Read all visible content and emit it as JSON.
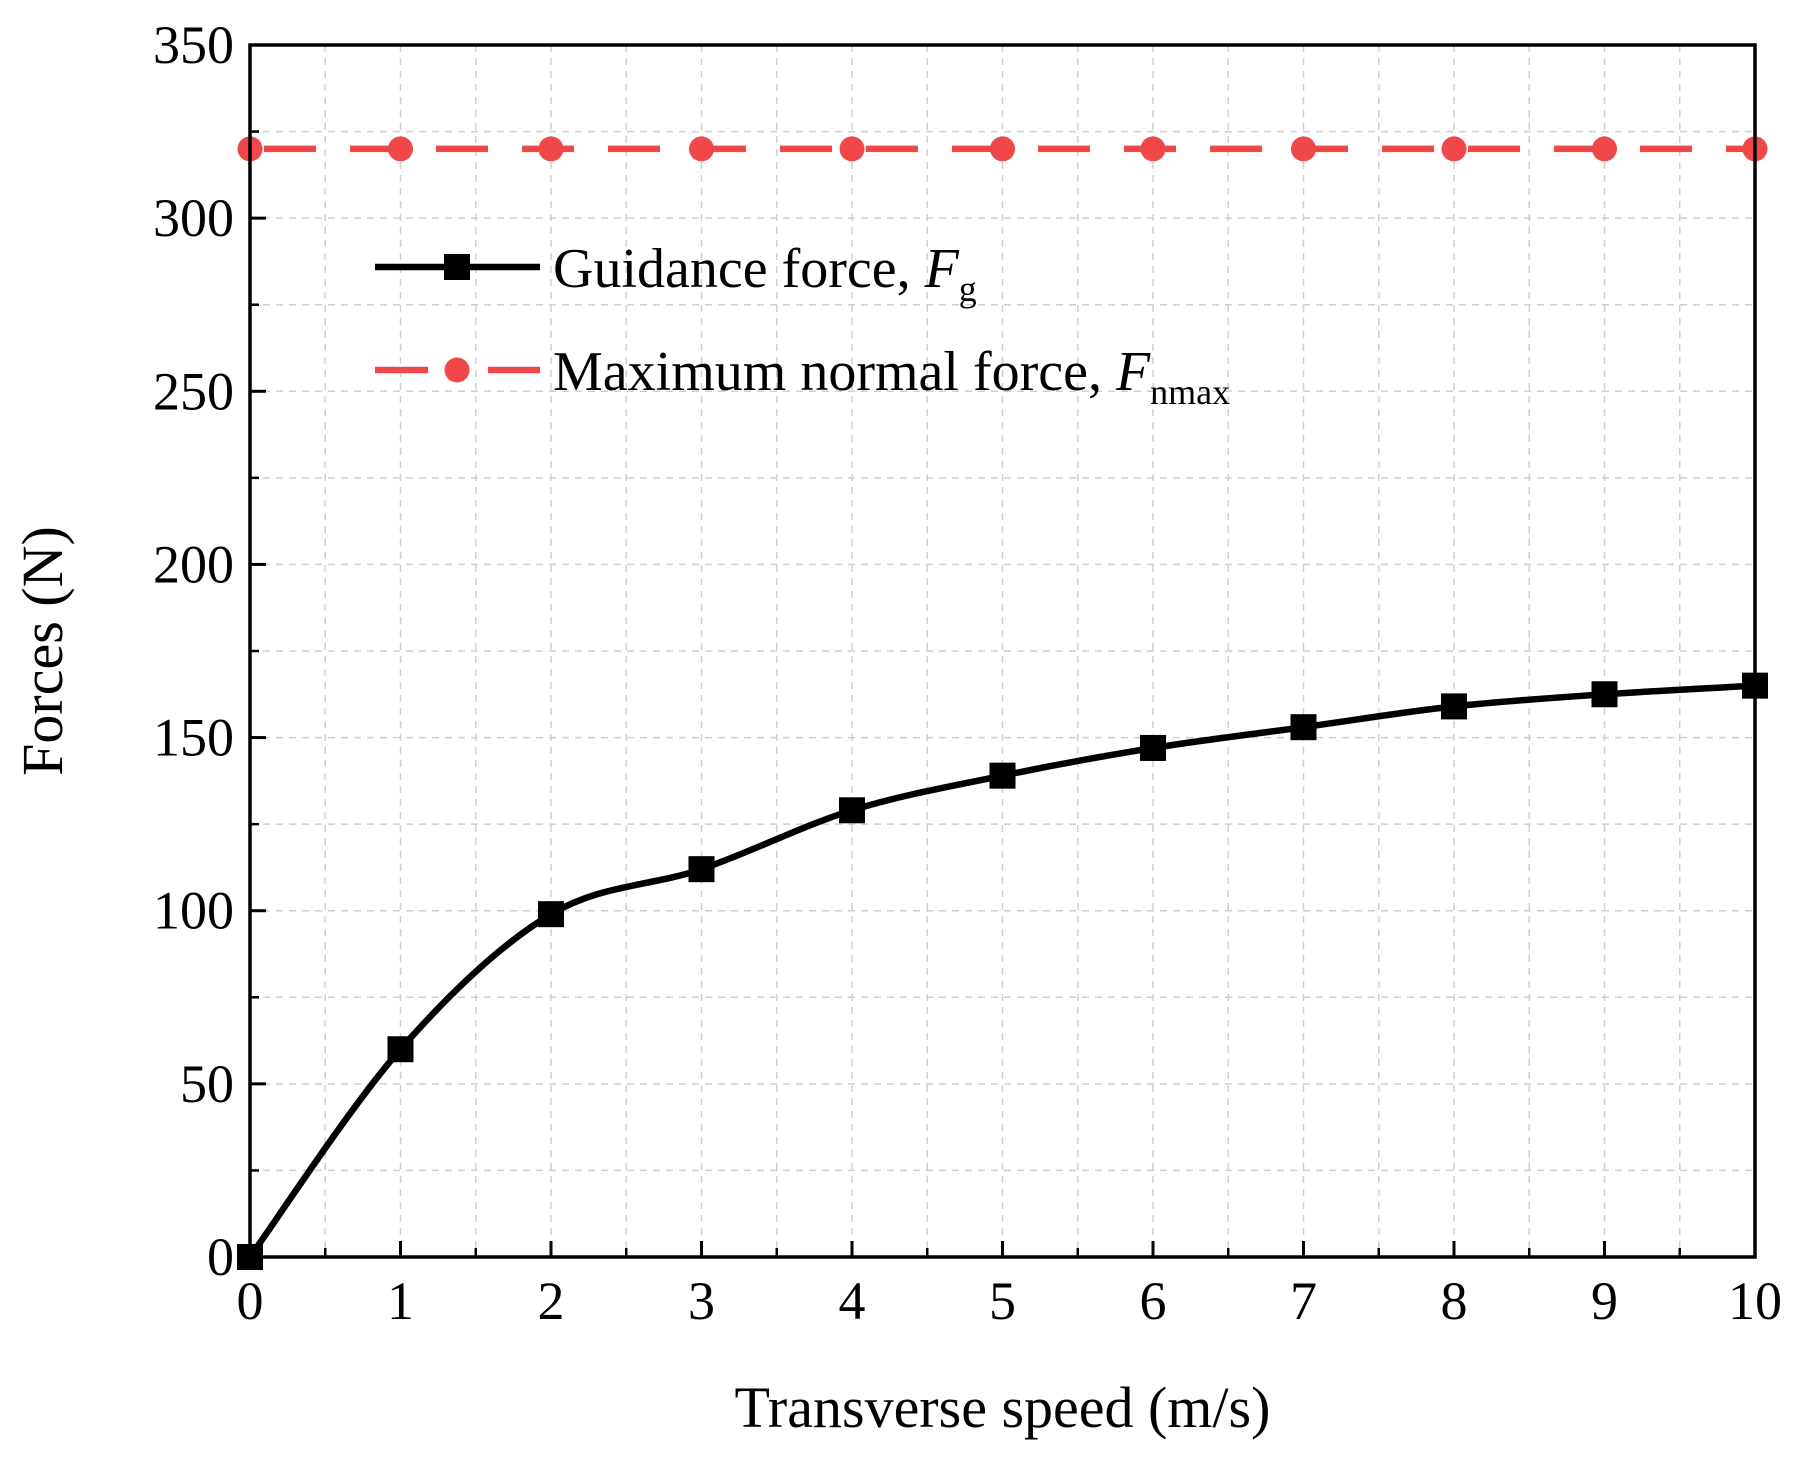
{
  "chart_data": {
    "type": "line",
    "title": "",
    "xlabel": "Transverse speed (m/s)",
    "ylabel": "Forces (N)",
    "xlim": [
      0,
      10
    ],
    "ylim": [
      0,
      350
    ],
    "xticks": [
      0,
      1,
      2,
      3,
      4,
      5,
      6,
      7,
      8,
      9,
      10
    ],
    "yticks": [
      0,
      50,
      100,
      150,
      200,
      250,
      300,
      350
    ],
    "xtick_labels": [
      "0",
      "1",
      "2",
      "3",
      "4",
      "5",
      "6",
      "7",
      "8",
      "9",
      "10"
    ],
    "ytick_labels": [
      "0",
      "50",
      "100",
      "150",
      "200",
      "250",
      "300",
      "350"
    ],
    "grid": true,
    "legend_position": "upper-left",
    "series": [
      {
        "name": "Guidance force, Fg",
        "legend_main": "Guidance force, ",
        "legend_symbol": "F",
        "legend_sub": "g",
        "color": "#000000",
        "marker": "square",
        "line_style": "solid",
        "x": [
          0,
          1,
          2,
          3,
          4,
          5,
          6,
          7,
          8,
          9,
          10
        ],
        "y": [
          0,
          60,
          99,
          112,
          129,
          139,
          147,
          153,
          159,
          162.5,
          165
        ]
      },
      {
        "name": "Maximum normal force, Fnmax",
        "legend_main": "Maximum normal force, ",
        "legend_symbol": "F",
        "legend_sub": "nmax",
        "color": "#f04848",
        "marker": "circle",
        "line_style": "dashed",
        "x": [
          0,
          1,
          2,
          3,
          4,
          5,
          6,
          7,
          8,
          9,
          10
        ],
        "y": [
          320,
          320,
          320,
          320,
          320,
          320,
          320,
          320,
          320,
          320,
          320
        ]
      }
    ]
  }
}
